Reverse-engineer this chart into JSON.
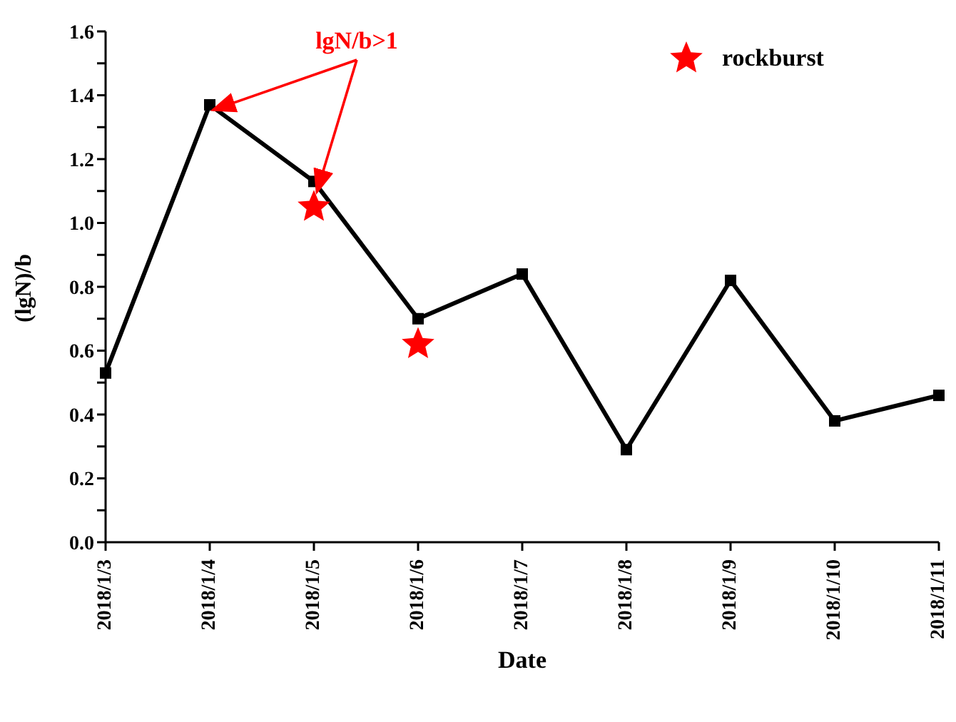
{
  "chart_data": {
    "type": "line",
    "xlabel": "Date",
    "ylabel": "(lgN)/b",
    "categories": [
      "2018/1/3",
      "2018/1/4",
      "2018/1/5",
      "2018/1/6",
      "2018/1/7",
      "2018/1/8",
      "2018/1/9",
      "2018/1/10",
      "2018/1/11"
    ],
    "series": [
      {
        "color": "#000000",
        "marker": "square",
        "values": [
          0.53,
          1.37,
          1.13,
          0.7,
          0.84,
          0.29,
          0.82,
          0.38,
          0.46
        ]
      },
      {
        "type": "scatter",
        "name": "rockburst",
        "color": "#ff0000",
        "marker": "star",
        "values": [
          null,
          null,
          1.05,
          0.62,
          null,
          null,
          null,
          null,
          null
        ]
      }
    ],
    "ylim": [
      0,
      1.6
    ],
    "yticks": [
      {
        "value": 0,
        "label": "0.0"
      },
      {
        "value": 0.1,
        "label": null
      },
      0.2,
      {
        "value": 0.3,
        "label": null
      },
      0.4,
      {
        "value": 0.5,
        "label": null
      },
      0.6,
      {
        "value": 0.7,
        "label": null
      },
      0.8,
      {
        "value": 0.9,
        "label": null
      },
      {
        "value": 1,
        "label": "1.0"
      },
      {
        "value": 1.1,
        "label": null
      },
      1.2,
      {
        "value": 1.3,
        "label": null
      },
      1.4,
      {
        "value": 1.5,
        "label": null
      },
      1.6
    ],
    "annotations": [
      {
        "text": "lgN/b>1",
        "x": "2018/1/5",
        "y": 1.13
      }
    ],
    "legend": "top right"
  }
}
